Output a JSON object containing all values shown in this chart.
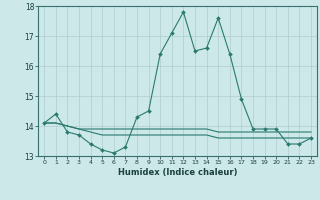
{
  "xlabel": "Humidex (Indice chaleur)",
  "ylabel": "",
  "xlim": [
    -0.5,
    23.5
  ],
  "ylim": [
    13,
    18
  ],
  "yticks": [
    13,
    14,
    15,
    16,
    17,
    18
  ],
  "xticks": [
    0,
    1,
    2,
    3,
    4,
    5,
    6,
    7,
    8,
    9,
    10,
    11,
    12,
    13,
    14,
    15,
    16,
    17,
    18,
    19,
    20,
    21,
    22,
    23
  ],
  "line_color": "#2a7a6e",
  "background_color": "#cce8e8",
  "grid_color": "#b0cccc",
  "series1": [
    14.1,
    14.4,
    13.8,
    13.7,
    13.4,
    13.2,
    13.1,
    13.3,
    14.3,
    14.5,
    16.4,
    17.1,
    17.8,
    16.5,
    16.6,
    17.6,
    16.4,
    14.9,
    13.9,
    13.9,
    13.9,
    13.4,
    13.4,
    13.6
  ],
  "series2": [
    14.1,
    14.1,
    14.0,
    13.9,
    13.9,
    13.9,
    13.9,
    13.9,
    13.9,
    13.9,
    13.9,
    13.9,
    13.9,
    13.9,
    13.9,
    13.8,
    13.8,
    13.8,
    13.8,
    13.8,
    13.8,
    13.8,
    13.8,
    13.8
  ],
  "series3": [
    14.1,
    14.1,
    14.0,
    13.9,
    13.8,
    13.7,
    13.7,
    13.7,
    13.7,
    13.7,
    13.7,
    13.7,
    13.7,
    13.7,
    13.7,
    13.6,
    13.6,
    13.6,
    13.6,
    13.6,
    13.6,
    13.6,
    13.6,
    13.6
  ]
}
